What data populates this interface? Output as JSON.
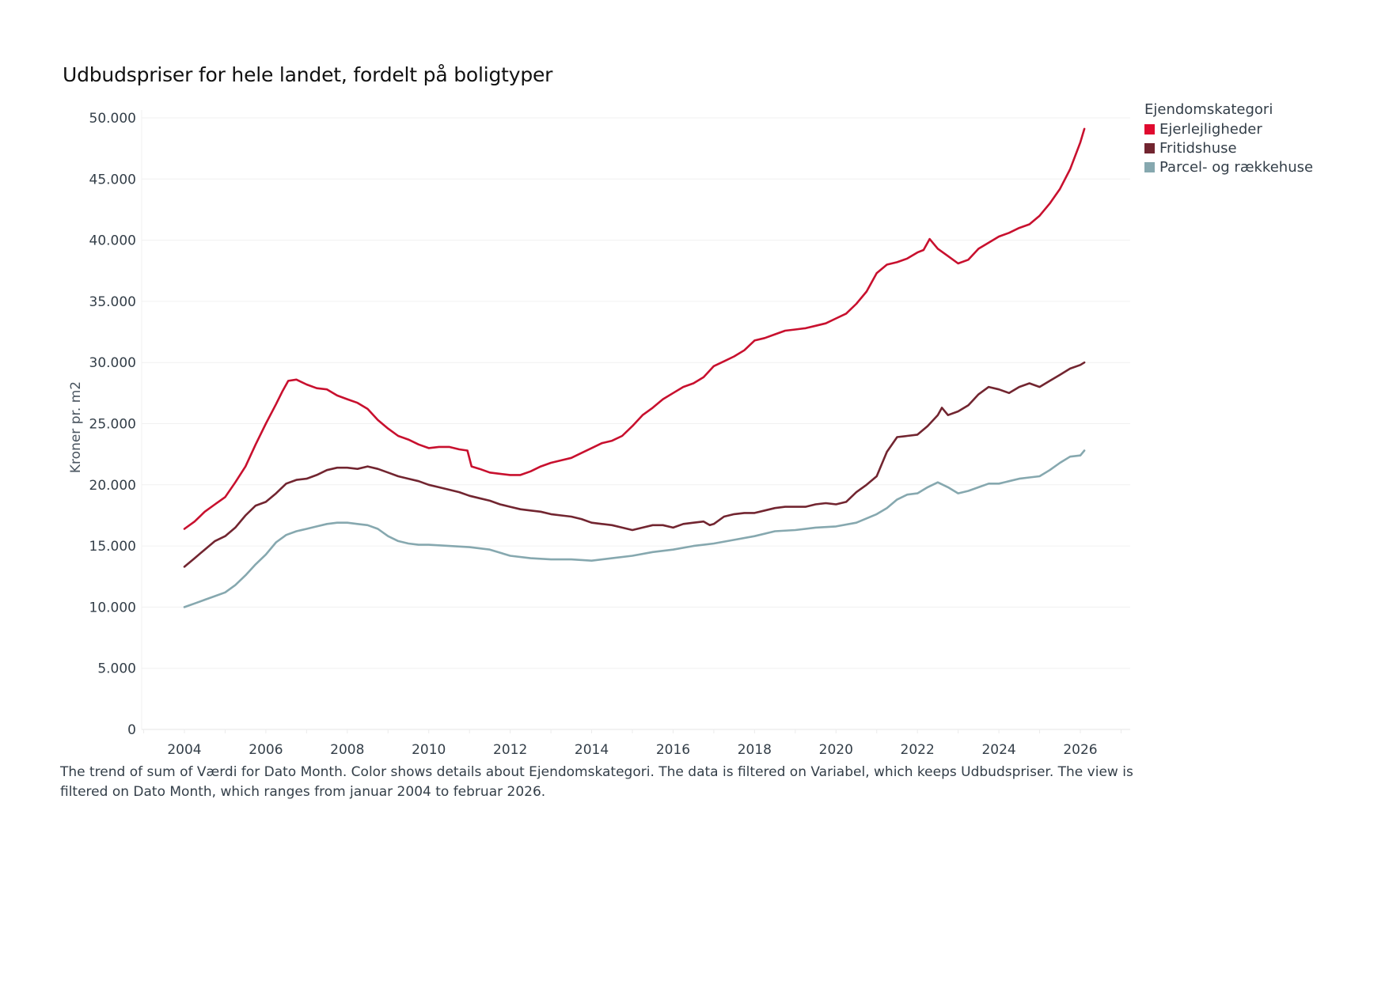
{
  "chart_data": {
    "type": "line",
    "title": "Udbudspriser for hele landet, fordelt på boligtyper",
    "xlabel": "",
    "ylabel": "Kroner pr. m2",
    "xlim": [
      2003.1,
      2027.2
    ],
    "ylim": [
      0,
      50000
    ],
    "x_ticks": [
      2004,
      2006,
      2008,
      2010,
      2012,
      2014,
      2016,
      2018,
      2020,
      2022,
      2024,
      2026
    ],
    "x_tick_labels": [
      "2004",
      "2006",
      "2008",
      "2010",
      "2012",
      "2014",
      "2016",
      "2018",
      "2020",
      "2022",
      "2024",
      "2026"
    ],
    "y_ticks": [
      0,
      5000,
      10000,
      15000,
      20000,
      25000,
      30000,
      35000,
      40000,
      45000,
      50000
    ],
    "y_tick_labels": [
      "0",
      "5.000",
      "10.000",
      "15.000",
      "20.000",
      "25.000",
      "30.000",
      "35.000",
      "40.000",
      "45.000",
      "50.000"
    ],
    "grid": "horizontal",
    "legend": {
      "title": "Ejendomskategori",
      "placement": "top-right"
    },
    "series": [
      {
        "name": "Ejerlejligheder",
        "color": "#C8102E",
        "swatch": "#E00A2F",
        "x": [
          2004.0,
          2004.25,
          2004.5,
          2004.75,
          2005.0,
          2005.25,
          2005.5,
          2005.75,
          2006.0,
          2006.25,
          2006.4,
          2006.55,
          2006.75,
          2007.0,
          2007.25,
          2007.5,
          2007.75,
          2008.0,
          2008.25,
          2008.5,
          2008.75,
          2009.0,
          2009.25,
          2009.5,
          2009.75,
          2010.0,
          2010.25,
          2010.5,
          2010.75,
          2010.95,
          2011.05,
          2011.25,
          2011.5,
          2011.75,
          2012.0,
          2012.25,
          2012.5,
          2012.75,
          2013.0,
          2013.25,
          2013.5,
          2013.75,
          2014.0,
          2014.25,
          2014.5,
          2014.75,
          2015.0,
          2015.25,
          2015.5,
          2015.75,
          2016.0,
          2016.25,
          2016.5,
          2016.75,
          2017.0,
          2017.25,
          2017.5,
          2017.75,
          2018.0,
          2018.25,
          2018.5,
          2018.75,
          2019.0,
          2019.25,
          2019.5,
          2019.75,
          2020.0,
          2020.25,
          2020.5,
          2020.75,
          2021.0,
          2021.25,
          2021.5,
          2021.75,
          2022.0,
          2022.15,
          2022.3,
          2022.5,
          2022.75,
          2023.0,
          2023.25,
          2023.5,
          2023.75,
          2024.0,
          2024.25,
          2024.5,
          2024.75,
          2025.0,
          2025.25,
          2025.5,
          2025.75,
          2026.0,
          2026.1
        ],
        "values": [
          16400,
          17000,
          17800,
          18400,
          19000,
          20200,
          21500,
          23300,
          25000,
          26600,
          27600,
          28500,
          28600,
          28200,
          27900,
          27800,
          27300,
          27000,
          26700,
          26200,
          25300,
          24600,
          24000,
          23700,
          23300,
          23000,
          23100,
          23100,
          22900,
          22800,
          21500,
          21300,
          21000,
          20900,
          20800,
          20800,
          21100,
          21500,
          21800,
          22000,
          22200,
          22600,
          23000,
          23400,
          23600,
          24000,
          24800,
          25700,
          26300,
          27000,
          27500,
          28000,
          28300,
          28800,
          29700,
          30100,
          30500,
          31000,
          31800,
          32000,
          32300,
          32600,
          32700,
          32800,
          33000,
          33200,
          33600,
          34000,
          34800,
          35800,
          37300,
          38000,
          38200,
          38500,
          39000,
          39200,
          40100,
          39300,
          38700,
          38100,
          38400,
          39300,
          39800,
          40300,
          40600,
          41000,
          41300,
          42000,
          43000,
          44200,
          45800,
          48000,
          49100
        ]
      },
      {
        "name": "Fritidshuse",
        "color": "#722530",
        "swatch": "#722530",
        "x": [
          2004.0,
          2004.25,
          2004.5,
          2004.75,
          2005.0,
          2005.25,
          2005.5,
          2005.75,
          2006.0,
          2006.25,
          2006.5,
          2006.75,
          2007.0,
          2007.25,
          2007.5,
          2007.75,
          2008.0,
          2008.25,
          2008.5,
          2008.75,
          2009.0,
          2009.25,
          2009.5,
          2009.75,
          2010.0,
          2010.25,
          2010.5,
          2010.75,
          2011.0,
          2011.25,
          2011.5,
          2011.75,
          2012.0,
          2012.25,
          2012.5,
          2012.75,
          2013.0,
          2013.25,
          2013.5,
          2013.75,
          2014.0,
          2014.25,
          2014.5,
          2014.75,
          2015.0,
          2015.25,
          2015.5,
          2015.75,
          2016.0,
          2016.25,
          2016.5,
          2016.75,
          2016.9,
          2017.0,
          2017.25,
          2017.5,
          2017.75,
          2018.0,
          2018.25,
          2018.5,
          2018.75,
          2019.0,
          2019.25,
          2019.5,
          2019.75,
          2020.0,
          2020.25,
          2020.5,
          2020.75,
          2021.0,
          2021.25,
          2021.5,
          2021.75,
          2022.0,
          2022.25,
          2022.5,
          2022.6,
          2022.75,
          2023.0,
          2023.25,
          2023.5,
          2023.75,
          2024.0,
          2024.25,
          2024.5,
          2024.75,
          2025.0,
          2025.25,
          2025.5,
          2025.75,
          2026.0,
          2026.1
        ],
        "values": [
          13300,
          14000,
          14700,
          15400,
          15800,
          16500,
          17500,
          18300,
          18600,
          19300,
          20100,
          20400,
          20500,
          20800,
          21200,
          21400,
          21400,
          21300,
          21500,
          21300,
          21000,
          20700,
          20500,
          20300,
          20000,
          19800,
          19600,
          19400,
          19100,
          18900,
          18700,
          18400,
          18200,
          18000,
          17900,
          17800,
          17600,
          17500,
          17400,
          17200,
          16900,
          16800,
          16700,
          16500,
          16300,
          16500,
          16700,
          16700,
          16500,
          16800,
          16900,
          17000,
          16700,
          16800,
          17400,
          17600,
          17700,
          17700,
          17900,
          18100,
          18200,
          18200,
          18200,
          18400,
          18500,
          18400,
          18600,
          19400,
          20000,
          20700,
          22700,
          23900,
          24000,
          24100,
          24800,
          25700,
          26300,
          25700,
          26000,
          26500,
          27400,
          28000,
          27800,
          27500,
          28000,
          28300,
          28000,
          28500,
          29000,
          29500,
          29800,
          30000
        ]
      },
      {
        "name": "Parcel- og rækkehuse",
        "color": "#86A8AF",
        "swatch": "#86A8AF",
        "x": [
          2004.0,
          2004.25,
          2004.5,
          2004.75,
          2005.0,
          2005.25,
          2005.5,
          2005.75,
          2006.0,
          2006.25,
          2006.5,
          2006.75,
          2007.0,
          2007.25,
          2007.5,
          2007.75,
          2008.0,
          2008.25,
          2008.5,
          2008.75,
          2009.0,
          2009.25,
          2009.5,
          2009.75,
          2010.0,
          2010.5,
          2011.0,
          2011.5,
          2012.0,
          2012.5,
          2013.0,
          2013.5,
          2014.0,
          2014.5,
          2015.0,
          2015.5,
          2016.0,
          2016.5,
          2017.0,
          2017.5,
          2018.0,
          2018.5,
          2019.0,
          2019.5,
          2020.0,
          2020.5,
          2021.0,
          2021.25,
          2021.5,
          2021.75,
          2022.0,
          2022.25,
          2022.5,
          2022.75,
          2023.0,
          2023.25,
          2023.5,
          2023.75,
          2024.0,
          2024.25,
          2024.5,
          2024.75,
          2025.0,
          2025.25,
          2025.5,
          2025.75,
          2026.0,
          2026.1
        ],
        "values": [
          10000,
          10300,
          10600,
          10900,
          11200,
          11800,
          12600,
          13500,
          14300,
          15300,
          15900,
          16200,
          16400,
          16600,
          16800,
          16900,
          16900,
          16800,
          16700,
          16400,
          15800,
          15400,
          15200,
          15100,
          15100,
          15000,
          14900,
          14700,
          14200,
          14000,
          13900,
          13900,
          13800,
          14000,
          14200,
          14500,
          14700,
          15000,
          15200,
          15500,
          15800,
          16200,
          16300,
          16500,
          16600,
          16900,
          17600,
          18100,
          18800,
          19200,
          19300,
          19800,
          20200,
          19800,
          19300,
          19500,
          19800,
          20100,
          20100,
          20300,
          20500,
          20600,
          20700,
          21200,
          21800,
          22300,
          22400,
          22800
        ]
      }
    ],
    "caption": "The trend of sum of Værdi for Dato Month.  Color shows details about Ejendomskategori. The data is filtered on Variabel, which keeps Udbudspriser. The view is filtered on Dato Month, which ranges from januar 2004 to februar 2026."
  }
}
